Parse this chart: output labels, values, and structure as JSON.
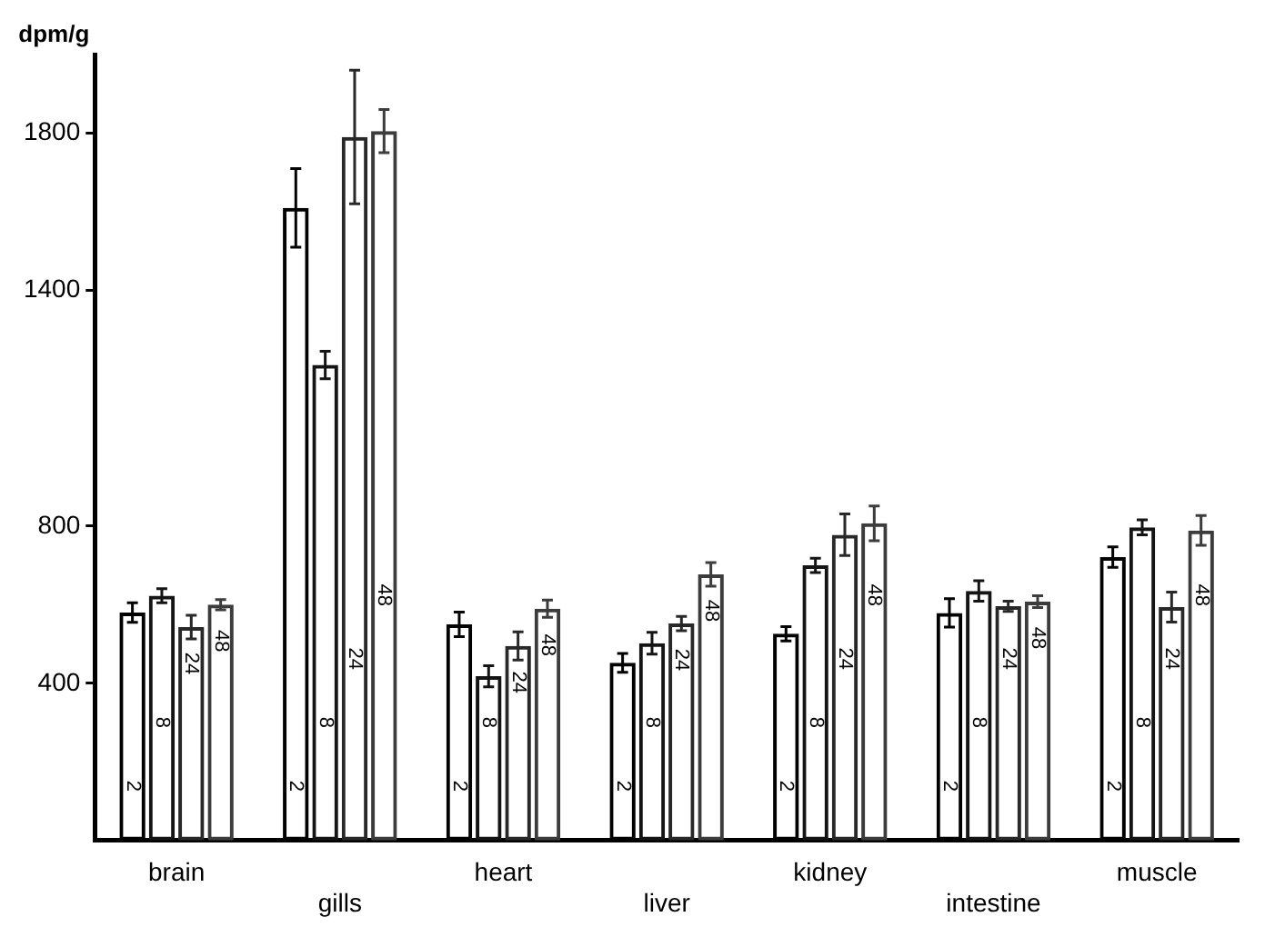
{
  "chart_data": {
    "type": "bar",
    "ylabel": "dpm/g",
    "categories": [
      "brain",
      "gills",
      "heart",
      "liver",
      "kidney",
      "intestine",
      "muscle"
    ],
    "series": [
      {
        "name": "2",
        "color": "#000000",
        "values": [
          580,
          1610,
          550,
          452,
          526,
          579,
          721
        ],
        "errors": [
          25,
          100,
          31,
          24,
          18,
          36,
          26
        ]
      },
      {
        "name": "8",
        "color": "#141414",
        "values": [
          623,
          1210,
          418,
          502,
          700,
          635,
          797
        ],
        "errors": [
          18,
          35,
          27,
          28,
          18,
          26,
          19
        ]
      },
      {
        "name": "24",
        "color": "#282828",
        "values": [
          543,
          1790,
          495,
          552,
          778,
          596,
          594
        ],
        "errors": [
          30,
          170,
          36,
          18,
          53,
          13,
          38
        ]
      },
      {
        "name": "48",
        "color": "#3c3c3c",
        "values": [
          600,
          1805,
          590,
          677,
          807,
          608,
          789
        ],
        "errors": [
          13,
          55,
          22,
          30,
          44,
          15,
          38
        ]
      }
    ],
    "ylim": [
      0,
      2000
    ],
    "yticks": [
      400,
      800,
      1400,
      1800
    ],
    "grid": false,
    "legend": false
  }
}
